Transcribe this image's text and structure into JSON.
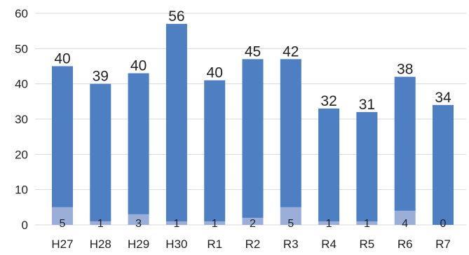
{
  "chart_data": {
    "type": "bar",
    "stacked": true,
    "categories": [
      "H27",
      "H28",
      "H29",
      "H30",
      "R1",
      "R2",
      "R3",
      "R4",
      "R5",
      "R6",
      "R7"
    ],
    "series": [
      {
        "values": [
          5,
          1,
          3,
          1,
          1,
          2,
          5,
          1,
          1,
          4,
          0
        ]
      },
      {
        "values": [
          40,
          39,
          40,
          56,
          40,
          45,
          42,
          32,
          31,
          38,
          34
        ]
      }
    ],
    "ylim": [
      0,
      60
    ],
    "yticks": [
      "0",
      "10",
      "20",
      "30",
      "40",
      "50",
      "60"
    ],
    "grid": true,
    "colors": {
      "base": "#9aaed8",
      "main": "#4e7fc2",
      "grid": "#d9d9d9"
    }
  }
}
